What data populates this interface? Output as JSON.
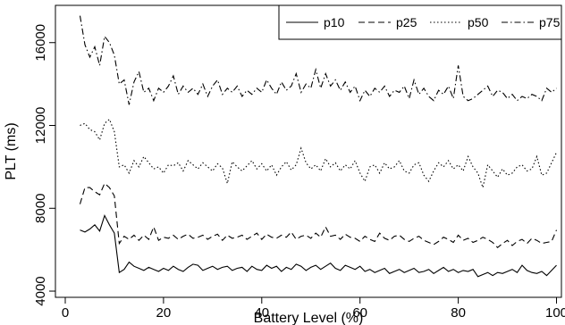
{
  "chart_data": {
    "type": "line",
    "title": "",
    "xlabel": "Battery Level (%)",
    "ylabel": "PLT (ms)",
    "xlim": [
      -2,
      101
    ],
    "ylim": [
      3700,
      17800
    ],
    "xticks": [
      0,
      20,
      40,
      60,
      80,
      100
    ],
    "yticks": [
      4000,
      8000,
      12000,
      16000
    ],
    "grid": false,
    "legend_position": "top-right",
    "x": [
      3,
      4,
      5,
      6,
      7,
      8,
      9,
      10,
      11,
      12,
      13,
      14,
      15,
      16,
      17,
      18,
      19,
      20,
      21,
      22,
      23,
      24,
      25,
      26,
      27,
      28,
      29,
      30,
      31,
      32,
      33,
      34,
      35,
      36,
      37,
      38,
      39,
      40,
      41,
      42,
      43,
      44,
      45,
      46,
      47,
      48,
      49,
      50,
      51,
      52,
      53,
      54,
      55,
      56,
      57,
      58,
      59,
      60,
      61,
      62,
      63,
      64,
      65,
      66,
      67,
      68,
      69,
      70,
      71,
      72,
      73,
      74,
      75,
      76,
      77,
      78,
      79,
      80,
      81,
      82,
      83,
      84,
      85,
      86,
      87,
      88,
      89,
      90,
      91,
      92,
      93,
      94,
      95,
      96,
      97,
      98,
      99,
      100
    ],
    "series": [
      {
        "name": "p10",
        "dash": "solid",
        "values": [
          6950,
          6850,
          7000,
          7200,
          6900,
          7650,
          7200,
          6800,
          4900,
          5050,
          5400,
          5200,
          5100,
          5000,
          5150,
          5050,
          4950,
          5100,
          5000,
          5200,
          5050,
          4950,
          5150,
          5300,
          5250,
          5000,
          5100,
          5200,
          5050,
          5150,
          5200,
          5000,
          5100,
          5150,
          4950,
          5200,
          5050,
          5000,
          5250,
          5100,
          5200,
          4950,
          5150,
          5050,
          5300,
          5200,
          5000,
          5150,
          5250,
          5050,
          5200,
          5350,
          5100,
          5000,
          5250,
          5150,
          5050,
          5200,
          4950,
          5050,
          4900,
          5000,
          5100,
          4850,
          4950,
          5050,
          4900,
          5000,
          5100,
          4900,
          4950,
          5050,
          4850,
          5000,
          5150,
          4950,
          5050,
          4900,
          5000,
          4950,
          5050,
          4700,
          4800,
          4900,
          4750,
          4900,
          4850,
          4950,
          5050,
          4900,
          5250,
          5000,
          4900,
          4850,
          4950,
          4750,
          5000,
          5250
        ]
      },
      {
        "name": "p25",
        "dash": "dashed",
        "values": [
          8200,
          9000,
          9000,
          8800,
          8650,
          9200,
          9000,
          8600,
          6300,
          6650,
          6500,
          6700,
          6450,
          6700,
          6500,
          7100,
          6450,
          6600,
          6550,
          6700,
          6500,
          6650,
          6750,
          6550,
          6600,
          6700,
          6500,
          6650,
          6750,
          6450,
          6700,
          6550,
          6600,
          6700,
          6500,
          6650,
          6800,
          6500,
          6750,
          6600,
          6550,
          6700,
          6600,
          6850,
          6500,
          6650,
          6700,
          6550,
          6800,
          6600,
          7100,
          6650,
          6700,
          6500,
          6750,
          6600,
          6550,
          6400,
          6650,
          6500,
          6400,
          6800,
          6550,
          6450,
          6650,
          6700,
          6500,
          6400,
          6550,
          6650,
          6450,
          6350,
          6250,
          6400,
          6600,
          6500,
          6350,
          6700,
          6450,
          6550,
          6350,
          6450,
          6600,
          6500,
          6350,
          6100,
          6300,
          6450,
          6200,
          6400,
          6500,
          6300,
          6550,
          6450,
          6300,
          6350,
          6400,
          6950
        ]
      },
      {
        "name": "p50",
        "dash": "dotted",
        "values": [
          12000,
          12100,
          11800,
          11700,
          11300,
          12100,
          12300,
          11700,
          10000,
          10100,
          9700,
          10300,
          10000,
          10500,
          10200,
          9900,
          10000,
          9700,
          10100,
          10050,
          10200,
          9800,
          10300,
          10100,
          9900,
          10200,
          10000,
          9800,
          10150,
          9950,
          9200,
          10250,
          10000,
          9800,
          10050,
          10300,
          9900,
          10150,
          9800,
          10100,
          9600,
          10000,
          10250,
          9850,
          10100,
          10900,
          10200,
          9900,
          10100,
          9800,
          10400,
          10000,
          10200,
          9800,
          10100,
          9900,
          10300,
          9700,
          9300,
          10000,
          10100,
          9700,
          10200,
          9900,
          10000,
          10300,
          9800,
          9700,
          10100,
          10200,
          9600,
          9300,
          9800,
          10200,
          10000,
          10300,
          9900,
          10100,
          9800,
          10500,
          10000,
          9700,
          9000,
          10100,
          9800,
          9500,
          9900,
          9600,
          9700,
          10000,
          10100,
          9800,
          9900,
          10500,
          9600,
          9700,
          10200,
          10700
        ]
      },
      {
        "name": "p75",
        "dash": "dashdot",
        "values": [
          17300,
          15900,
          15300,
          15800,
          14900,
          16300,
          16000,
          15400,
          14000,
          14200,
          13000,
          14100,
          14600,
          13600,
          13800,
          13200,
          13800,
          13600,
          13900,
          14400,
          13500,
          13900,
          13600,
          13800,
          13500,
          14000,
          13400,
          13900,
          14200,
          13500,
          13800,
          13600,
          13900,
          13400,
          13700,
          13500,
          13800,
          13600,
          14200,
          13800,
          13500,
          14100,
          13700,
          13900,
          14500,
          13600,
          14000,
          13800,
          14700,
          13800,
          14500,
          13900,
          14200,
          13700,
          14100,
          13600,
          13900,
          13200,
          13700,
          13400,
          13800,
          13600,
          13900,
          13400,
          13700,
          13600,
          13900,
          13300,
          14200,
          13500,
          13800,
          13400,
          13200,
          13700,
          13500,
          13900,
          13300,
          14900,
          13400,
          13200,
          13300,
          13500,
          13700,
          13900,
          13400,
          13700,
          13600,
          13300,
          13500,
          13200,
          13400,
          13300,
          13500,
          13400,
          13200,
          13800,
          13600,
          13800
        ]
      }
    ]
  }
}
